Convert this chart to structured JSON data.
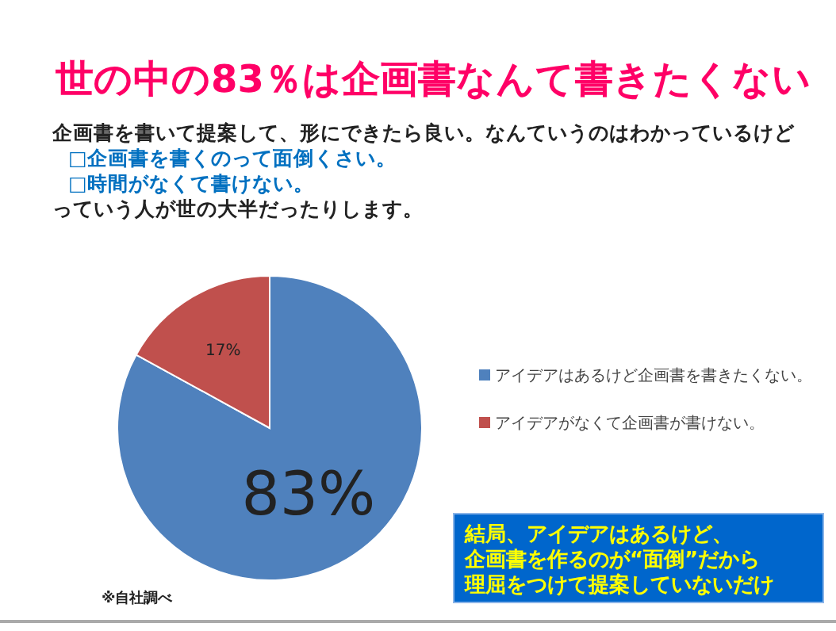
{
  "chart_data": {
    "type": "pie",
    "title": "世の中の83％は企画書なんて書きたくない",
    "subtitle": "企画書を書いて提案して、形にできたら良い。なんていうのはわかっているけど",
    "categories": [
      "アイデアはあるけど企画書を書きたくない。",
      "アイデアがなくて企画書が書けない。"
    ],
    "values": [
      83,
      17
    ],
    "colors": [
      "#4f81bd",
      "#c0504d"
    ],
    "value_labels": [
      "83%",
      "17%"
    ],
    "legend": "right",
    "annotations": [
      "□企画書を書くのって面倒くさい。",
      "□時間がなくて書けない。",
      "っていう人が世の大半だったりします。",
      "結局、アイデアはあるけど、",
      "企画書を作るのが“面倒”だから",
      "理屈をつけて提案していないだけ",
      "※自社調べ"
    ]
  }
}
